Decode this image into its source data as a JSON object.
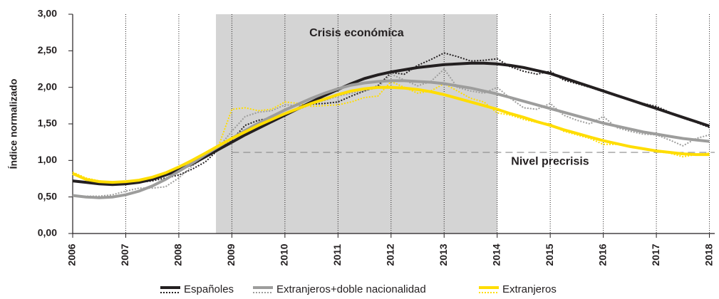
{
  "chart_data": {
    "type": "line",
    "ylabel": "Índice normalizado",
    "x": [
      2006,
      2006.25,
      2006.5,
      2006.75,
      2007,
      2007.25,
      2007.5,
      2007.75,
      2008,
      2008.25,
      2008.5,
      2008.75,
      2009,
      2009.25,
      2009.5,
      2009.75,
      2010,
      2010.25,
      2010.5,
      2010.75,
      2011,
      2011.25,
      2011.5,
      2011.75,
      2012,
      2012.25,
      2012.5,
      2012.75,
      2013,
      2013.25,
      2013.5,
      2013.75,
      2014,
      2014.25,
      2014.5,
      2014.75,
      2015,
      2015.25,
      2015.5,
      2015.75,
      2016,
      2016.25,
      2016.5,
      2016.75,
      2017,
      2017.25,
      2017.5,
      2017.75,
      2018
    ],
    "series": [
      {
        "name": "Españoles",
        "color": "#231f20",
        "values": [
          0.72,
          0.7,
          0.68,
          0.67,
          0.68,
          0.7,
          0.74,
          0.8,
          0.87,
          0.95,
          1.05,
          1.15,
          1.25,
          1.35,
          1.44,
          1.53,
          1.62,
          1.71,
          1.8,
          1.89,
          1.97,
          2.05,
          2.12,
          2.17,
          2.21,
          2.24,
          2.27,
          2.29,
          2.31,
          2.32,
          2.33,
          2.33,
          2.32,
          2.3,
          2.27,
          2.23,
          2.19,
          2.13,
          2.07,
          2.01,
          1.95,
          1.89,
          1.83,
          1.77,
          1.71,
          1.65,
          1.59,
          1.53,
          1.47
        ],
        "raw": [
          0.72,
          0.7,
          0.69,
          0.68,
          0.7,
          0.7,
          0.72,
          0.76,
          0.8,
          0.88,
          0.98,
          1.15,
          1.28,
          1.48,
          1.55,
          1.58,
          1.62,
          1.7,
          1.77,
          1.78,
          1.8,
          1.88,
          1.95,
          2.02,
          2.2,
          2.18,
          2.3,
          2.38,
          2.47,
          2.42,
          2.36,
          2.37,
          2.39,
          2.28,
          2.22,
          2.18,
          2.22,
          2.1,
          2.05,
          2.0,
          1.94,
          1.88,
          1.83,
          1.78,
          1.74,
          1.66,
          1.58,
          1.52,
          1.45
        ]
      },
      {
        "name": "Extranjeros+doble nacionalidad",
        "color": "#9d9d9c",
        "values": [
          0.52,
          0.5,
          0.49,
          0.5,
          0.53,
          0.58,
          0.65,
          0.74,
          0.85,
          0.96,
          1.08,
          1.19,
          1.3,
          1.41,
          1.51,
          1.6,
          1.69,
          1.77,
          1.85,
          1.92,
          1.98,
          2.03,
          2.06,
          2.08,
          2.09,
          2.09,
          2.08,
          2.07,
          2.05,
          2.02,
          1.99,
          1.95,
          1.91,
          1.86,
          1.81,
          1.76,
          1.71,
          1.66,
          1.61,
          1.56,
          1.51,
          1.47,
          1.43,
          1.39,
          1.36,
          1.33,
          1.3,
          1.28,
          1.26
        ],
        "raw": [
          0.52,
          0.51,
          0.51,
          0.53,
          0.58,
          0.62,
          0.62,
          0.64,
          0.76,
          0.92,
          1.05,
          1.18,
          1.4,
          1.6,
          1.66,
          1.68,
          1.76,
          1.75,
          1.78,
          1.82,
          1.88,
          1.92,
          1.95,
          2.0,
          2.18,
          2.1,
          2.02,
          2.08,
          2.25,
          2.0,
          1.95,
          1.92,
          2.0,
          1.85,
          1.72,
          1.7,
          1.78,
          1.62,
          1.55,
          1.5,
          1.6,
          1.45,
          1.4,
          1.36,
          1.35,
          1.28,
          1.2,
          1.3,
          1.35
        ]
      },
      {
        "name": "Extranjeros",
        "color": "#ffdd00",
        "values": [
          0.82,
          0.74,
          0.71,
          0.7,
          0.71,
          0.73,
          0.77,
          0.83,
          0.91,
          1.0,
          1.1,
          1.2,
          1.3,
          1.39,
          1.48,
          1.56,
          1.64,
          1.71,
          1.78,
          1.84,
          1.9,
          1.95,
          1.98,
          2.0,
          2.0,
          1.99,
          1.97,
          1.94,
          1.9,
          1.85,
          1.8,
          1.75,
          1.7,
          1.64,
          1.59,
          1.53,
          1.48,
          1.42,
          1.37,
          1.32,
          1.27,
          1.23,
          1.19,
          1.16,
          1.13,
          1.11,
          1.09,
          1.08,
          1.08
        ],
        "raw": [
          0.84,
          0.76,
          0.72,
          0.7,
          0.68,
          0.7,
          0.74,
          0.8,
          0.86,
          0.98,
          1.08,
          1.2,
          1.7,
          1.72,
          1.68,
          1.7,
          1.8,
          1.78,
          1.74,
          1.75,
          1.76,
          1.8,
          1.86,
          1.88,
          2.08,
          2.0,
          1.92,
          1.95,
          2.05,
          1.95,
          1.85,
          1.8,
          1.65,
          1.62,
          1.56,
          1.52,
          1.5,
          1.4,
          1.35,
          1.3,
          1.22,
          1.22,
          1.2,
          1.16,
          1.12,
          1.1,
          1.05,
          1.08,
          1.1
        ]
      }
    ],
    "shaded_region": {
      "x": [
        2008.7,
        2014
      ],
      "label": "Crisis económica",
      "color": "#d4d4d4"
    },
    "reference_line": {
      "y": 1.11,
      "x": [
        2009,
        2018.1
      ],
      "label": "Nivel precrisis"
    },
    "xlim": [
      2006,
      2018.1
    ],
    "xticks": [
      2006,
      2007,
      2008,
      2009,
      2010,
      2011,
      2012,
      2013,
      2014,
      2015,
      2016,
      2017,
      2018
    ],
    "ylim": [
      0,
      3
    ],
    "yticks": [
      {
        "value": 0,
        "label": "0,00"
      },
      {
        "value": 0.5,
        "label": "0,50"
      },
      {
        "value": 1,
        "label": "1,00"
      },
      {
        "value": 1.5,
        "label": "1,50"
      },
      {
        "value": 2,
        "label": "2,00"
      },
      {
        "value": 2.5,
        "label": "2,50"
      },
      {
        "value": 3,
        "label": "3,00"
      }
    ],
    "grid": true
  }
}
